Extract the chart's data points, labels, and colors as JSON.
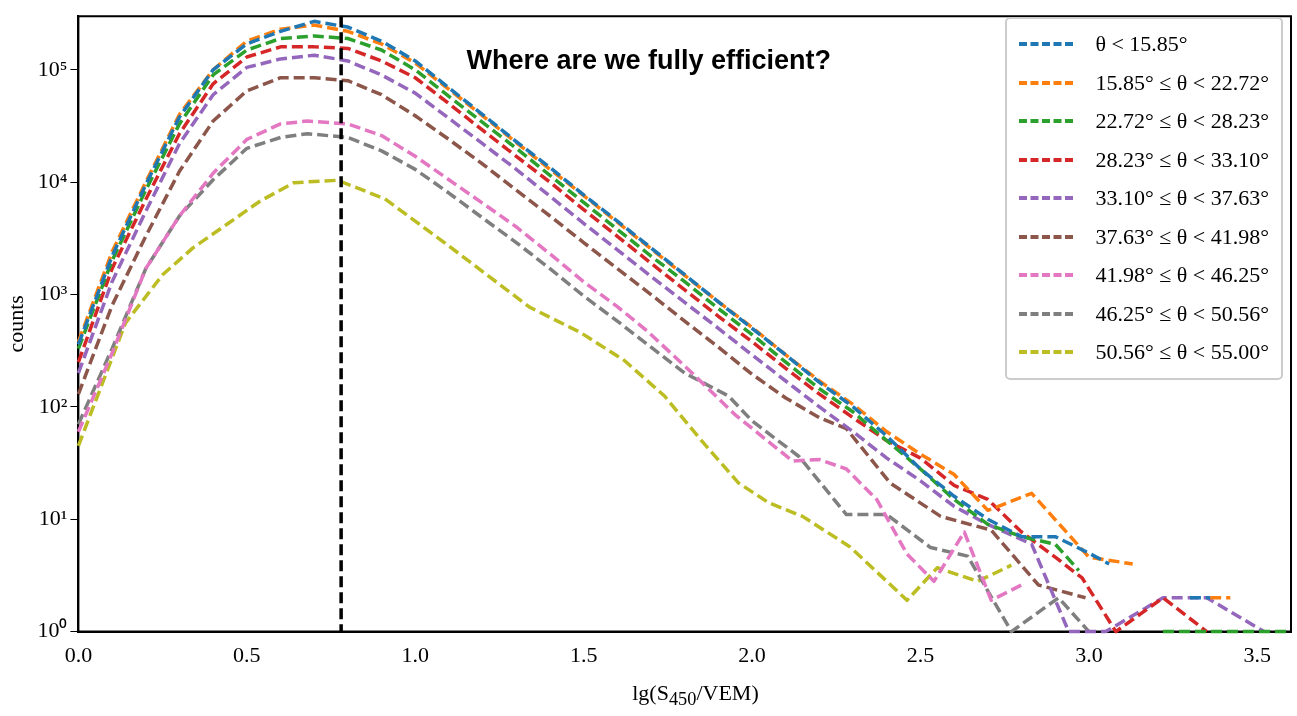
{
  "chart_data": {
    "type": "line",
    "xlabel": "lg(S$_{450}$/VEM)",
    "ylabel": "counts",
    "annotations": [
      "Where are we fully efficient?"
    ],
    "xlim": [
      0,
      3.6
    ],
    "xticks": [
      {
        "value": 0,
        "label": "0.0"
      },
      0.5,
      {
        "value": 1,
        "label": "1.0"
      },
      1.5,
      {
        "value": 2,
        "label": "2.0"
      },
      2.5,
      {
        "value": 3,
        "label": "3.0"
      },
      3.5
    ],
    "ylim": [
      1,
      300000
    ],
    "yticks": [
      {
        "value": 1,
        "label": "10⁰"
      },
      {
        "value": 10,
        "label": "10¹"
      },
      {
        "value": 100,
        "label": "10²"
      },
      {
        "value": 1000,
        "label": "10³"
      },
      {
        "value": 10000,
        "label": "10⁴"
      },
      {
        "value": 100000,
        "label": "10⁵"
      }
    ],
    "log": "y",
    "grid": false,
    "legend": "top right",
    "line_style": "dashed",
    "marker": "none",
    "ref_lines": [
      {
        "axis": "x",
        "value": 0.78,
        "color": "#000000",
        "line_style": "dashed"
      }
    ],
    "series": [
      {
        "name": "θ < 15.85°",
        "color": "#1f77b4",
        "x": [
          0,
          0.1,
          0.2,
          0.3,
          0.4,
          0.5,
          0.6,
          0.7,
          0.8,
          0.9,
          1.0,
          1.1,
          1.2,
          1.3,
          1.4,
          1.5,
          1.6,
          1.7,
          1.8,
          1.9,
          2.0,
          2.1,
          2.2,
          2.3,
          2.4,
          2.5,
          2.6,
          2.7,
          2.8,
          2.9,
          3.0,
          3.06,
          3.2,
          3.3,
          3.36
        ],
        "values": [
          360,
          2200,
          9500,
          38000,
          100000,
          170000,
          220000,
          270000,
          240000,
          180000,
          120000,
          69000,
          40000,
          23000,
          13500,
          7700,
          4500,
          2600,
          1500,
          860,
          500,
          290,
          165,
          100,
          55,
          28,
          16,
          10,
          7,
          7,
          5,
          4,
          null,
          2,
          2
        ]
      },
      {
        "name": "15.85° ≤ θ < 22.72°",
        "color": "#ff7f0e",
        "x": [
          0,
          0.1,
          0.2,
          0.3,
          0.4,
          0.5,
          0.6,
          0.7,
          0.8,
          0.9,
          1.0,
          1.1,
          1.2,
          1.3,
          1.4,
          1.5,
          1.6,
          1.7,
          1.8,
          1.9,
          2.0,
          2.1,
          2.2,
          2.3,
          2.4,
          2.5,
          2.6,
          2.7,
          2.83,
          3.0,
          3.13,
          3.25,
          3.36,
          3.42
        ],
        "values": [
          380,
          2400,
          10000,
          40000,
          100000,
          180000,
          230000,
          250000,
          220000,
          170000,
          115000,
          67000,
          39000,
          22500,
          13000,
          7600,
          4400,
          2550,
          1480,
          860,
          510,
          290,
          170,
          105,
          60,
          38,
          25,
          12,
          17,
          4.6,
          4,
          null,
          2,
          2
        ]
      },
      {
        "name": "22.72° ≤ θ < 28.23°",
        "color": "#2ca02c",
        "x": [
          0,
          0.1,
          0.2,
          0.3,
          0.4,
          0.5,
          0.6,
          0.7,
          0.8,
          0.9,
          1.0,
          1.1,
          1.2,
          1.3,
          1.4,
          1.5,
          1.6,
          1.7,
          1.8,
          1.9,
          2.0,
          2.1,
          2.2,
          2.3,
          2.4,
          2.5,
          2.6,
          2.7,
          2.8,
          2.9,
          2.97,
          3.1,
          3.22,
          3.6
        ],
        "values": [
          330,
          2000,
          8500,
          33000,
          90000,
          150000,
          190000,
          200000,
          190000,
          150000,
          100000,
          58000,
          34000,
          20000,
          11500,
          6600,
          3800,
          2200,
          1300,
          750,
          440,
          250,
          145,
          90,
          50,
          28,
          15,
          9,
          7,
          6,
          3.5,
          null,
          1,
          1
        ]
      },
      {
        "name": "28.23° ≤ θ < 33.10°",
        "color": "#d62728",
        "x": [
          0,
          0.1,
          0.2,
          0.3,
          0.4,
          0.5,
          0.6,
          0.7,
          0.8,
          0.9,
          1.0,
          1.1,
          1.2,
          1.3,
          1.4,
          1.5,
          1.6,
          1.7,
          1.8,
          1.9,
          2.0,
          2.1,
          2.2,
          2.3,
          2.4,
          2.5,
          2.6,
          2.7,
          2.8,
          2.9,
          2.98,
          3.08,
          3.22,
          3.35
        ],
        "values": [
          250,
          1700,
          7000,
          27000,
          75000,
          130000,
          160000,
          160000,
          155000,
          120000,
          85000,
          50000,
          29000,
          17000,
          10000,
          5700,
          3300,
          1900,
          1100,
          640,
          380,
          220,
          130,
          80,
          50,
          35,
          20,
          15,
          7.7,
          4.6,
          3,
          1,
          2,
          1
        ]
      },
      {
        "name": "33.10° ≤ θ < 37.63°",
        "color": "#9467bd",
        "x": [
          0,
          0.1,
          0.2,
          0.3,
          0.4,
          0.5,
          0.6,
          0.7,
          0.8,
          0.9,
          1.0,
          1.1,
          1.2,
          1.3,
          1.4,
          1.5,
          1.6,
          1.7,
          1.8,
          1.9,
          2.0,
          2.1,
          2.2,
          2.3,
          2.4,
          2.5,
          2.6,
          2.7,
          2.83,
          2.94,
          3.05,
          3.22,
          3.35,
          3.52
        ],
        "values": [
          200,
          1300,
          5500,
          22000,
          60000,
          105000,
          125000,
          135000,
          120000,
          90000,
          62000,
          37000,
          22000,
          13000,
          7500,
          4300,
          2500,
          1450,
          850,
          500,
          290,
          170,
          100,
          60,
          35,
          22,
          13,
          9,
          6,
          1,
          1,
          2,
          2,
          1
        ]
      },
      {
        "name": "37.63° ≤ θ < 41.98°",
        "color": "#8c564b",
        "x": [
          0,
          0.1,
          0.2,
          0.3,
          0.4,
          0.5,
          0.6,
          0.7,
          0.8,
          0.9,
          1.0,
          1.1,
          1.2,
          1.3,
          1.4,
          1.5,
          1.6,
          1.7,
          1.8,
          1.9,
          2.0,
          2.1,
          2.2,
          2.28,
          2.41,
          2.56,
          2.71,
          2.85,
          2.99
        ],
        "values": [
          130,
          800,
          3300,
          12500,
          35000,
          65000,
          85000,
          85000,
          80000,
          60000,
          39000,
          24000,
          14500,
          8500,
          5000,
          2900,
          1700,
          1000,
          580,
          340,
          195,
          120,
          80,
          64,
          21,
          10.6,
          8,
          2.6,
          2
        ]
      },
      {
        "name": "41.98° ≤ θ < 46.25°",
        "color": "#e377c2",
        "x": [
          0,
          0.1,
          0.2,
          0.3,
          0.4,
          0.5,
          0.6,
          0.68,
          0.8,
          0.9,
          1.0,
          1.1,
          1.2,
          1.3,
          1.4,
          1.5,
          1.6,
          1.69,
          1.83,
          1.95,
          2.12,
          2.2,
          2.28,
          2.37,
          2.46,
          2.54,
          2.63,
          2.71,
          2.8
        ],
        "values": [
          60,
          300,
          1700,
          5000,
          12000,
          24000,
          33000,
          35000,
          33000,
          26000,
          17000,
          10500,
          6500,
          4000,
          2300,
          1300,
          780,
          470,
          190,
          85,
          33,
          34,
          28,
          15,
          4.9,
          2.8,
          7.7,
          1.9,
          2.6
        ]
      },
      {
        "name": "46.25° ≤ θ < 50.56°",
        "color": "#7f7f7f",
        "x": [
          0,
          0.1,
          0.2,
          0.3,
          0.4,
          0.5,
          0.6,
          0.68,
          0.8,
          0.9,
          1.0,
          1.1,
          1.2,
          1.3,
          1.4,
          1.5,
          1.6,
          1.7,
          1.8,
          1.93,
          2.0,
          2.14,
          2.28,
          2.4,
          2.53,
          2.64,
          2.77,
          2.91,
          3.0
        ],
        "values": [
          70,
          330,
          1700,
          5000,
          10500,
          20000,
          25000,
          27000,
          25000,
          19000,
          13000,
          8000,
          4800,
          2900,
          1700,
          970,
          580,
          340,
          200,
          125,
          75,
          36,
          11,
          11,
          5.6,
          4.7,
          1,
          2,
          1
        ]
      },
      {
        "name": "50.56° ≤ θ < 55.00°",
        "color": "#bcbd22",
        "x": [
          0,
          0.14,
          0.25,
          0.34,
          0.44,
          0.54,
          0.64,
          0.77,
          0.91,
          1.09,
          1.2,
          1.34,
          1.49,
          1.62,
          1.74,
          1.85,
          1.96,
          2.05,
          2.15,
          2.29,
          2.46,
          2.55,
          2.67,
          2.77
        ],
        "values": [
          45,
          560,
          1500,
          2600,
          4200,
          6800,
          9900,
          10400,
          7100,
          2850,
          1600,
          770,
          460,
          260,
          125,
          50,
          21,
          14,
          10.6,
          5.7,
          1.9,
          3.7,
          2.8,
          3.9
        ]
      }
    ]
  }
}
